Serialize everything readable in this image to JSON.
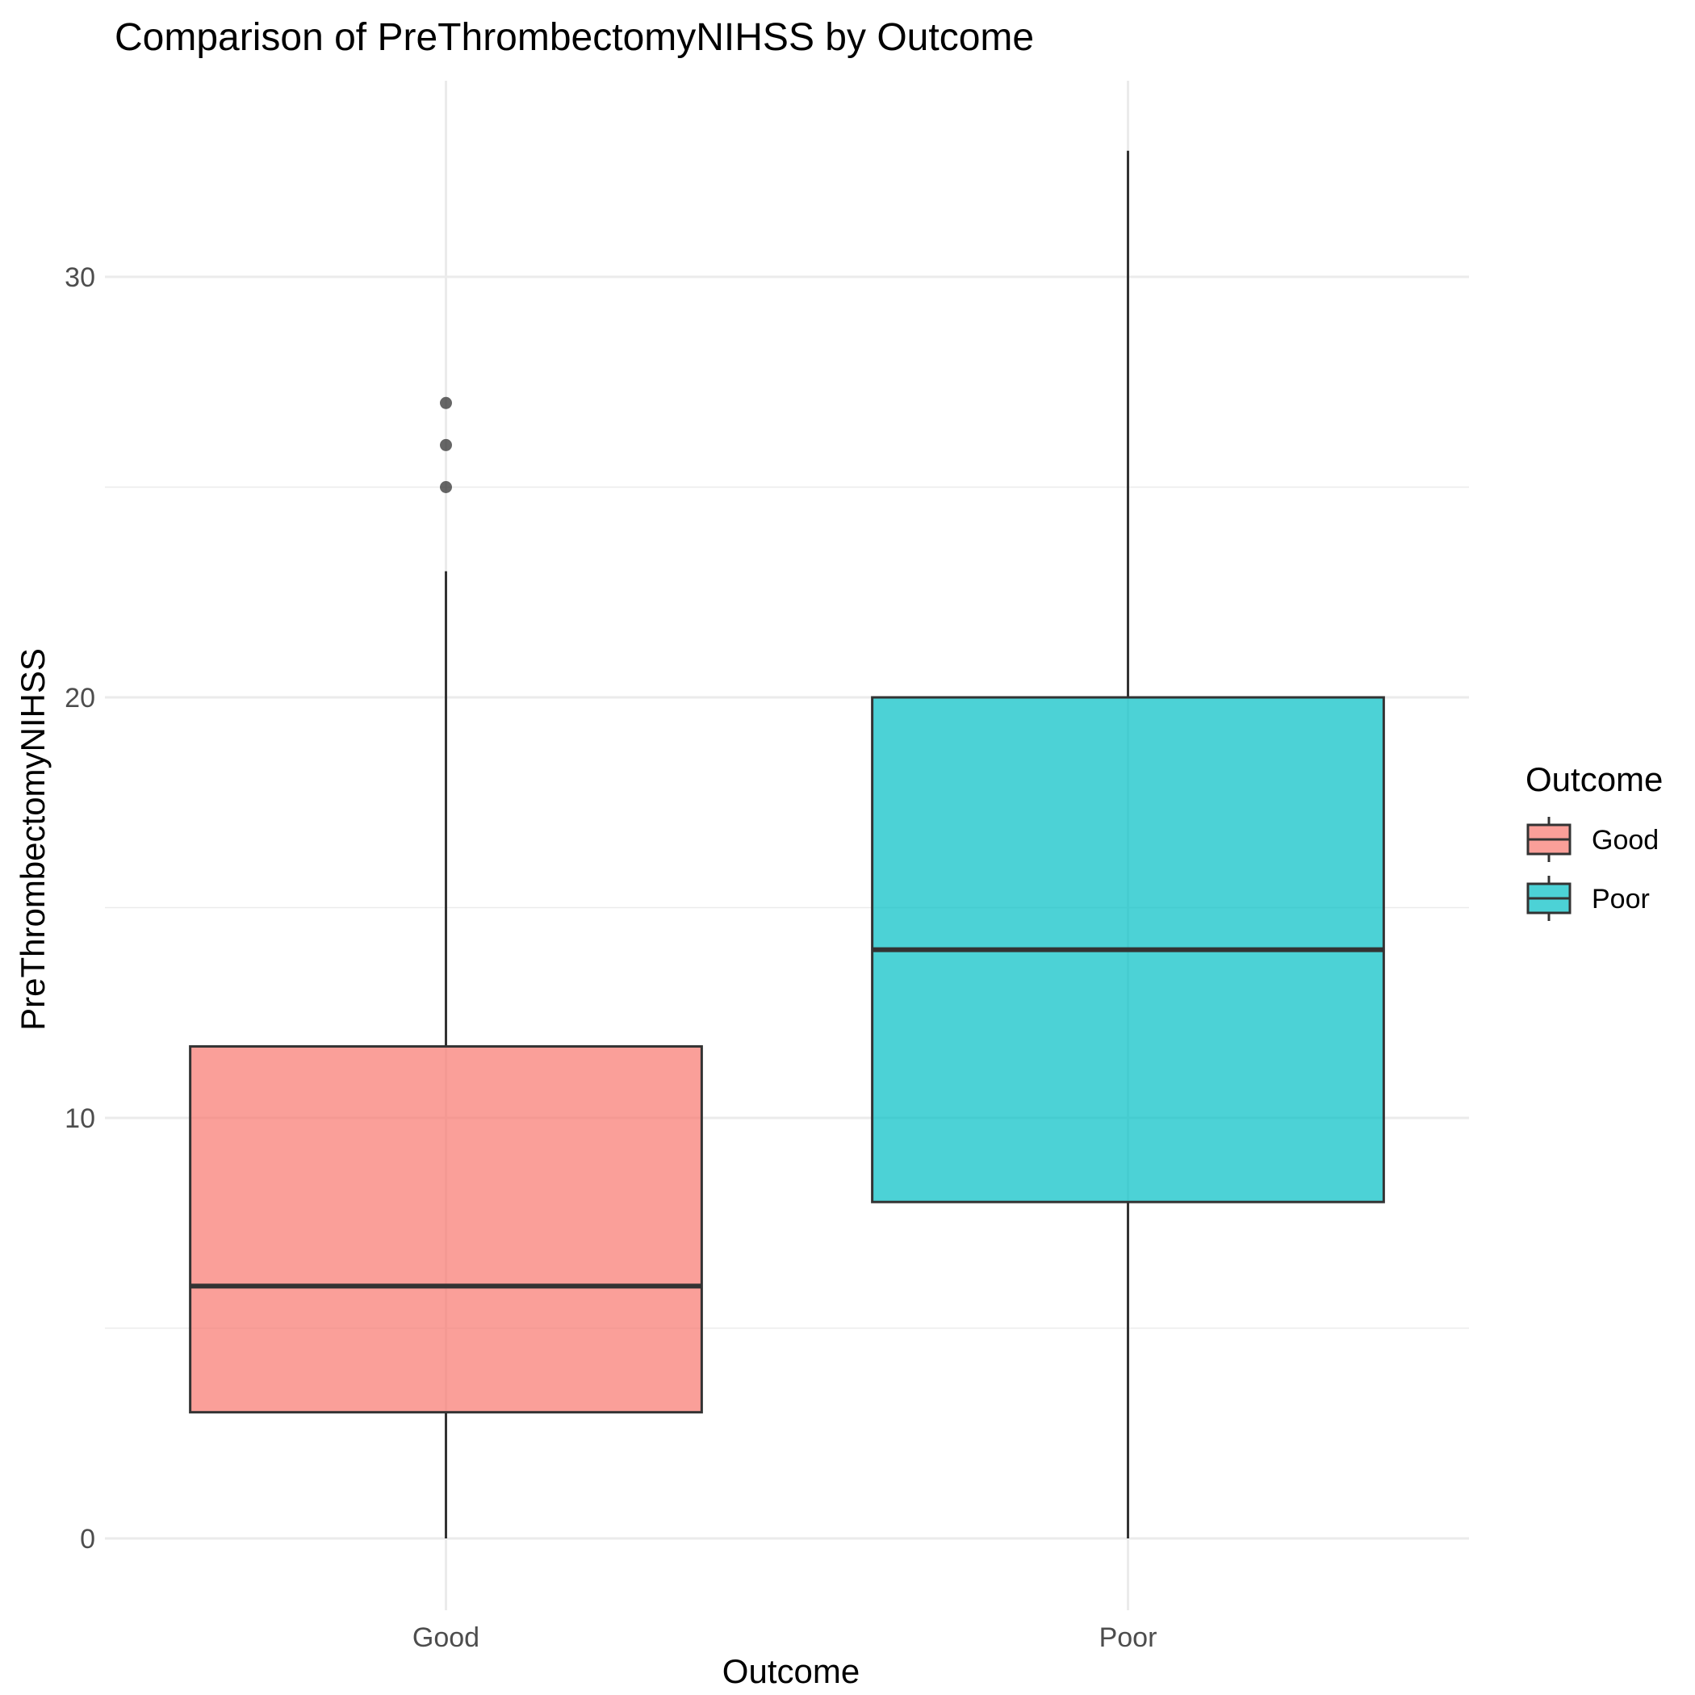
{
  "chart_data": {
    "type": "box",
    "title": "Comparison of PreThrombectomyNIHSS by Outcome",
    "xlabel": "Outcome",
    "ylabel": "PreThrombectomyNIHSS",
    "categories": [
      "Good",
      "Poor"
    ],
    "ylim": [
      -1.4,
      34.5
    ],
    "yticks": [
      0,
      10,
      20,
      30
    ],
    "yticks_labels": [
      "0",
      "10",
      "20",
      "30"
    ],
    "grid": true,
    "legend": {
      "title": "Outcome",
      "position": "right",
      "entries": [
        "Good",
        "Poor"
      ]
    },
    "series": [
      {
        "name": "Good",
        "color": "#F8766D",
        "min": 0,
        "q1": 3,
        "median": 6,
        "q3": 11.7,
        "max": 23,
        "outliers": [
          25,
          26,
          27
        ]
      },
      {
        "name": "Poor",
        "color": "#00BFC4",
        "min": 0,
        "q1": 8,
        "median": 14,
        "q3": 20,
        "max": 33
      }
    ]
  }
}
